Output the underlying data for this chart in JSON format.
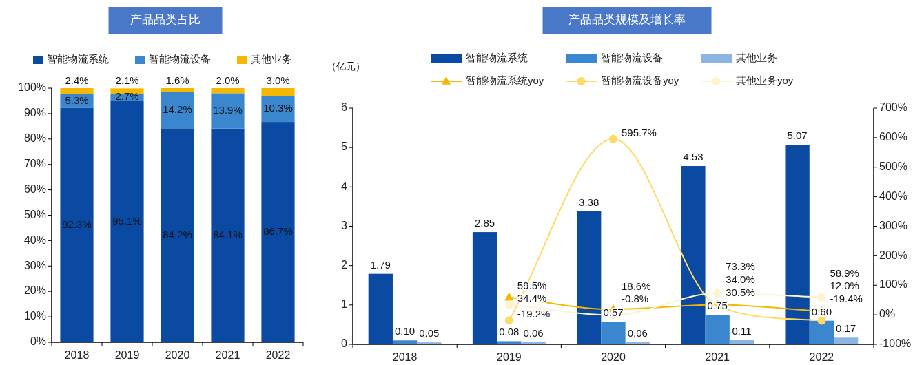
{
  "chart_data": [
    {
      "type": "bar",
      "title": "产品品类占比",
      "stacked": true,
      "legend": "top",
      "categories": [
        "2018",
        "2019",
        "2020",
        "2021",
        "2022"
      ],
      "series": [
        {
          "name": "智能物流系统",
          "color": "#0b4aa2",
          "values": [
            92.3,
            95.1,
            84.2,
            84.1,
            86.7
          ],
          "value_labels": [
            "92.3%",
            "95.1%",
            "84.2%",
            "84.1%",
            "86.7%"
          ]
        },
        {
          "name": "智能物流设备",
          "color": "#3a86cf",
          "values": [
            5.3,
            2.7,
            14.2,
            13.9,
            10.3
          ],
          "value_labels": [
            "5.3%",
            "2.7%",
            "14.2%",
            "13.9%",
            "10.3%"
          ]
        },
        {
          "name": "其他业务",
          "color": "#f5b800",
          "values": [
            2.4,
            2.1,
            1.6,
            2.0,
            3.0
          ],
          "value_labels": [
            "2.4%",
            "2.1%",
            "1.6%",
            "2.0%",
            "3.0%"
          ]
        }
      ],
      "ylim": [
        0,
        100
      ],
      "yticks": [
        {
          "value": 0,
          "label": "0%"
        },
        {
          "value": 10,
          "label": "10%"
        },
        {
          "value": 20,
          "label": "20%"
        },
        {
          "value": 30,
          "label": "30%"
        },
        {
          "value": 40,
          "label": "40%"
        },
        {
          "value": 50,
          "label": "50%"
        },
        {
          "value": 60,
          "label": "60%"
        },
        {
          "value": 70,
          "label": "70%"
        },
        {
          "value": 80,
          "label": "80%"
        },
        {
          "value": 90,
          "label": "90%"
        },
        {
          "value": 100,
          "label": "100%"
        }
      ]
    },
    {
      "type": "bar",
      "title": "产品品类规模及增长率",
      "ylabel": "（亿元）",
      "legend": "top",
      "categories": [
        "2018",
        "2019",
        "2020",
        "2021",
        "2022"
      ],
      "series": [
        {
          "name": "智能物流系统",
          "color": "#0b4aa2",
          "values": [
            1.79,
            2.85,
            3.38,
            4.53,
            5.07
          ],
          "value_labels": [
            "1.79",
            "2.85",
            "3.38",
            "4.53",
            "5.07"
          ]
        },
        {
          "name": "智能物流设备",
          "color": "#3a86cf",
          "values": [
            0.1,
            0.08,
            0.57,
            0.75,
            0.6
          ],
          "value_labels": [
            "0.10",
            "0.08",
            "0.57",
            "0.75",
            "0.60"
          ]
        },
        {
          "name": "其他业务",
          "color": "#8db5e2",
          "values": [
            0.05,
            0.06,
            0.06,
            0.11,
            0.17
          ],
          "value_labels": [
            "0.05",
            "0.06",
            "0.06",
            "0.11",
            "0.17"
          ]
        },
        {
          "name": "智能物流系统yoy",
          "type": "line",
          "axis": "y2",
          "marker": "triangle",
          "color": "#f5b800",
          "values": [
            null,
            59.5,
            18.6,
            34.0,
            12.0
          ],
          "value_labels": [
            null,
            "59.5%",
            "18.6%",
            "34.0%",
            "12.0%"
          ]
        },
        {
          "name": "智能物流设备yoy",
          "type": "line",
          "axis": "y2",
          "marker": "circle",
          "color": "#ffd966",
          "values": [
            null,
            -19.2,
            595.7,
            30.5,
            -19.4
          ],
          "value_labels": [
            null,
            "-19.2%",
            "595.7%",
            "30.5%",
            "-19.4%"
          ]
        },
        {
          "name": "其他业务yoy",
          "type": "line",
          "axis": "y2",
          "marker": "circle",
          "color": "#fff2cc",
          "values": [
            null,
            34.4,
            -0.8,
            73.3,
            58.9
          ],
          "value_labels": [
            null,
            "34.4%",
            "-0.8%",
            "73.3%",
            "58.9%"
          ]
        }
      ],
      "ylim": [
        0,
        6
      ],
      "yticks": [
        0,
        1,
        2,
        3,
        4,
        5,
        6
      ],
      "y2lim": [
        -100,
        700
      ],
      "y2ticks": [
        {
          "value": -100,
          "label": "-100%"
        },
        {
          "value": 0,
          "label": "0%"
        },
        {
          "value": 100,
          "label": "100%"
        },
        {
          "value": 200,
          "label": "200%"
        },
        {
          "value": 300,
          "label": "300%"
        },
        {
          "value": 400,
          "label": "400%"
        },
        {
          "value": 500,
          "label": "500%"
        },
        {
          "value": 600,
          "label": "600%"
        },
        {
          "value": 700,
          "label": "700%"
        }
      ]
    }
  ]
}
